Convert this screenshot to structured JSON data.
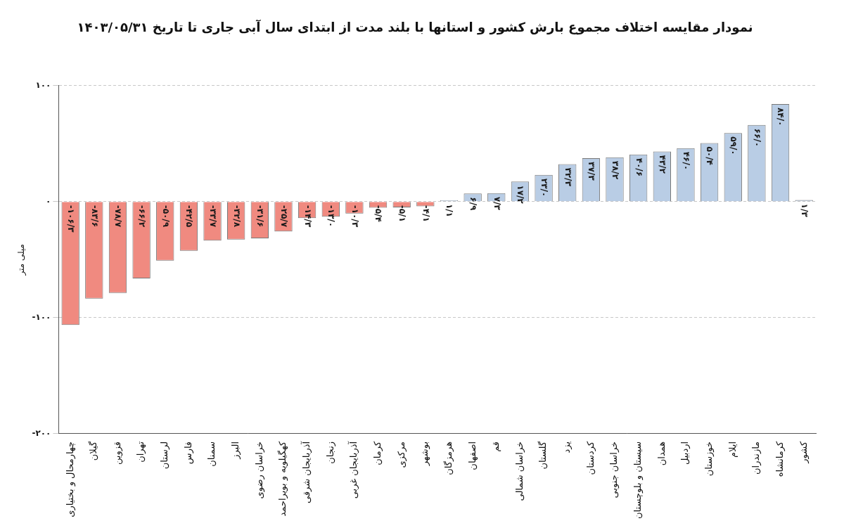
{
  "chart_data": {
    "type": "bar",
    "title": "نمودار مقایسه اختلاف مجموع بارش کشور و استانها با بلند مدت از ابتدای سال آبی جاری تا تاریخ ۱۴۰۳/۰۵/۳۱",
    "y_label": "میلی متر",
    "categories": [
      "چهارمحال و بختیاری",
      "گیلان",
      "قزوین",
      "تهران",
      "لرستان",
      "فارس",
      "سمنان",
      "البرز",
      "خراسان رضوی",
      "کهگیلویه و بویراحمد",
      "آذربایجان شرقی",
      "زنجان",
      "آذربایجان غربی",
      "کرمان",
      "مرکزی",
      "بوشهر",
      "هرمزگان",
      "اصفهان",
      "قم",
      "خراسان شمالی",
      "گلستان",
      "یزد",
      "کردستان",
      "خراسان جنوبی",
      "سیستان و بلوچستان",
      "همدان",
      "اردبیل",
      "خوزستان",
      "ایلام",
      "مازندران",
      "کرمانشاه",
      "کشور"
    ],
    "values": [
      -106.3,
      -83.6,
      -78.7,
      -66.2,
      -50.9,
      -42.5,
      -33.7,
      -32.8,
      -31.6,
      -25.7,
      -14.3,
      -13.0,
      -10.3,
      -5.4,
      -5.1,
      -4.1,
      1.1,
      6.9,
      7.3,
      17.2,
      23.0,
      32.3,
      37.3,
      38.2,
      40.6,
      43.2,
      46.0,
      50.4,
      59.0,
      66.0,
      84.0,
      1.3
    ],
    "value_labels": [
      "-۱۰۶/۳",
      "-۸۳/۶",
      "-۷۸/۷",
      "-۶۶/۲",
      "-۵۰/۹",
      "-۴۲/۵",
      "-۳۳/۷",
      "-۳۲/۸",
      "-۳۱/۶",
      "-۲۵/۷",
      "-۱۴/۳",
      "-۱۳/۰",
      "-۱۰/۳",
      "-۵/۴",
      "-۵/۱",
      "-۴/۱",
      "۱/۱",
      "۶/۹",
      "۷/۳",
      "۱۷/۲",
      "۲۳/۰",
      "۳۲/۳",
      "۳۷/۳",
      "۳۸/۲",
      "۴۰/۶",
      "۴۳/۲",
      "۴۶/۰",
      "۵۰/۴",
      "۵۹/۰",
      "۶۶/۰",
      "۸۴/۰",
      "۱/۳"
    ],
    "colors": [
      "#f08a80",
      "#f08a80",
      "#f08a80",
      "#f08a80",
      "#f08a80",
      "#f08a80",
      "#f08a80",
      "#f08a80",
      "#f08a80",
      "#f08a80",
      "#f08a80",
      "#f08a80",
      "#f08a80",
      "#f08a80",
      "#f08a80",
      "#f08a80",
      "#b9cde5",
      "#b9cde5",
      "#b9cde5",
      "#b9cde5",
      "#b9cde5",
      "#b9cde5",
      "#b9cde5",
      "#b9cde5",
      "#b9cde5",
      "#b9cde5",
      "#b9cde5",
      "#b9cde5",
      "#b9cde5",
      "#b9cde5",
      "#b9cde5",
      "#b9cde5"
    ],
    "ylim": [
      -200,
      100
    ],
    "yticks": [
      {
        "value": 100,
        "label": "۱۰۰"
      },
      {
        "value": 0,
        "label": "۰"
      },
      {
        "value": -100,
        "label": "-۱۰۰"
      },
      {
        "value": -200,
        "label": "-۲۰۰"
      }
    ],
    "grid": true,
    "data_labels": true
  }
}
